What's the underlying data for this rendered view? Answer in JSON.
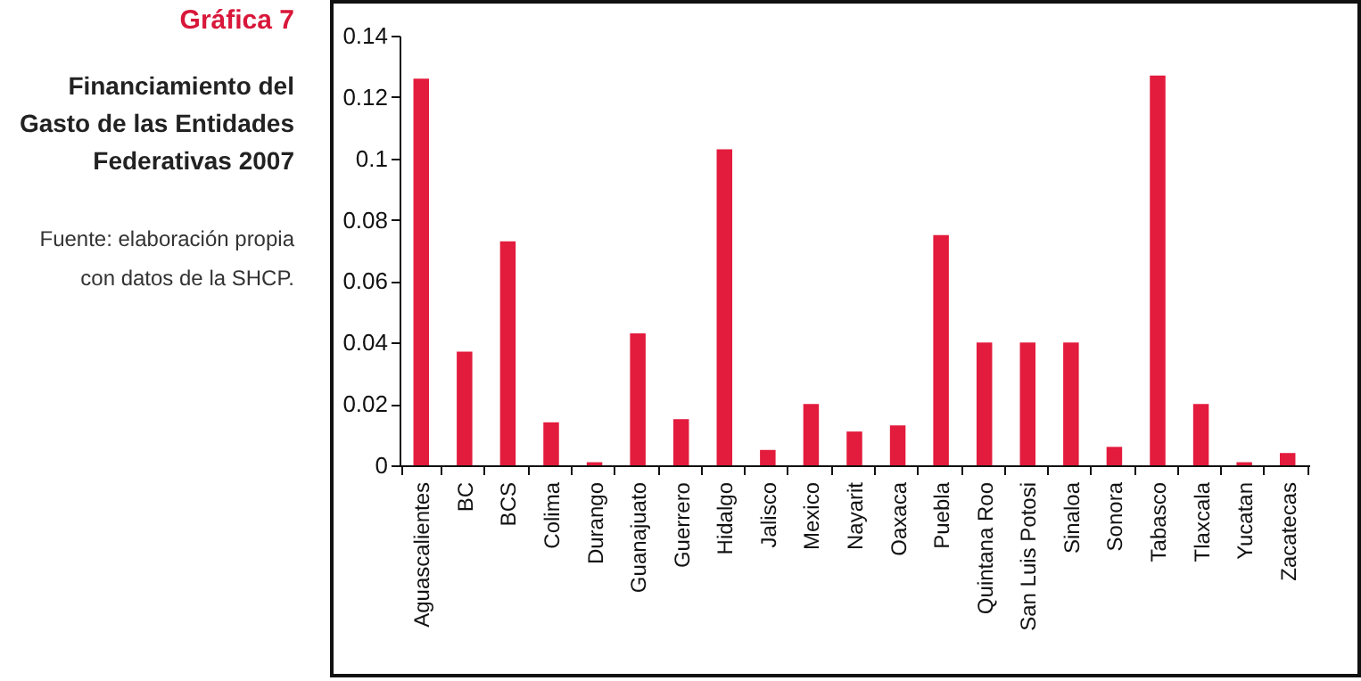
{
  "chart_data": {
    "type": "bar",
    "title": "Gráfica 7",
    "subtitle": "Financiamiento del Gasto de las Entidades Federativas 2007",
    "annotations": [
      "Fuente: elaboración propia con datos de la SHCP."
    ],
    "categories": [
      "Aguascalientes",
      "BC",
      "BCS",
      "Colima",
      "Durango",
      "Guanajuato",
      "Guerrero",
      "Hidalgo",
      "Jalisco",
      "Mexico",
      "Nayarit",
      "Oaxaca",
      "Puebla",
      "Quintana Roo",
      "San Luis Potosi",
      "Sinaloa",
      "Sonora",
      "Tabasco",
      "Tlaxcala",
      "Yucatan",
      "Zacatecas"
    ],
    "values": [
      0.126,
      0.037,
      0.073,
      0.014,
      0.001,
      0.043,
      0.015,
      0.103,
      0.005,
      0.02,
      0.011,
      0.013,
      0.075,
      0.04,
      0.04,
      0.04,
      0.006,
      0.127,
      0.02,
      0.001,
      0.004
    ],
    "color": "#e31b3c",
    "ylim": [
      0,
      0.14
    ],
    "yticks": [
      0,
      0.02,
      0.04,
      0.06,
      0.08,
      0.1,
      0.12,
      0.14
    ],
    "grid": false
  }
}
